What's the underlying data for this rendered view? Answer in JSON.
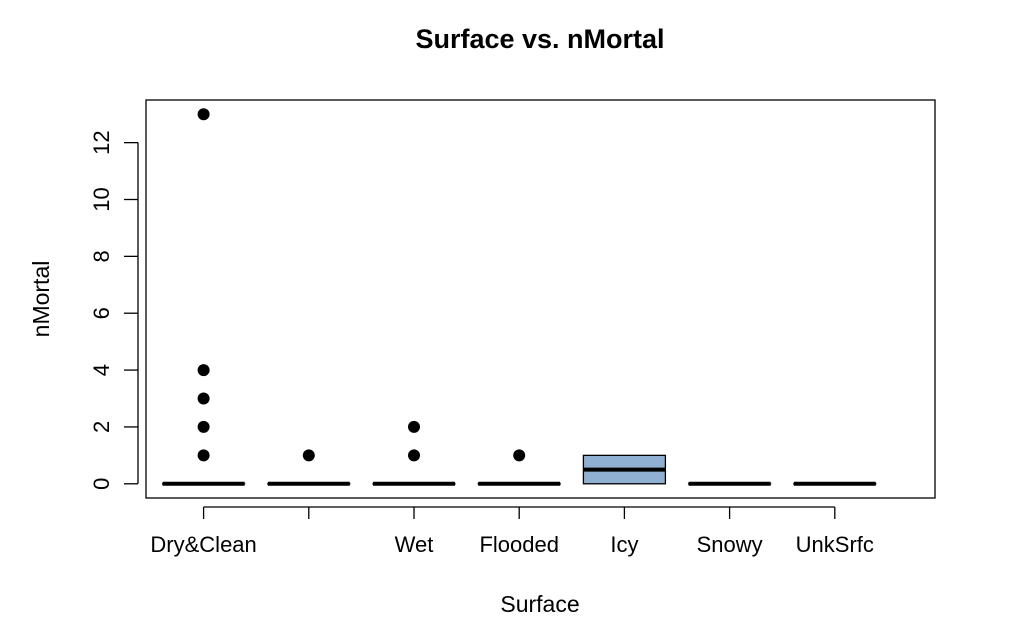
{
  "chart_data": {
    "type": "boxplot",
    "title": "Surface  vs. nMortal",
    "xlabel": "Surface",
    "ylabel": "nMortal",
    "ylim": [
      -0.5,
      13.5
    ],
    "yticks": [
      0,
      2,
      4,
      6,
      8,
      10,
      12
    ],
    "grid": false,
    "legend": "none",
    "box_color": "#8fb0d1",
    "categories": [
      "Dry&Clean",
      "",
      "Wet",
      "Flooded",
      "Icy",
      "Snowy",
      "UnkSrfc"
    ],
    "boxes": [
      {
        "category": "Dry&Clean",
        "q1": 0,
        "median": 0,
        "q3": 0,
        "whisker_low": 0,
        "whisker_high": 0,
        "outliers": [
          1,
          2,
          3,
          4,
          13
        ]
      },
      {
        "category": "",
        "q1": 0,
        "median": 0,
        "q3": 0,
        "whisker_low": 0,
        "whisker_high": 0,
        "outliers": [
          1
        ]
      },
      {
        "category": "Wet",
        "q1": 0,
        "median": 0,
        "q3": 0,
        "whisker_low": 0,
        "whisker_high": 0,
        "outliers": [
          1,
          2
        ]
      },
      {
        "category": "Flooded",
        "q1": 0,
        "median": 0,
        "q3": 0,
        "whisker_low": 0,
        "whisker_high": 0,
        "outliers": [
          1
        ]
      },
      {
        "category": "Icy",
        "q1": 0,
        "median": 0.5,
        "q3": 1,
        "whisker_low": 0,
        "whisker_high": 1,
        "outliers": []
      },
      {
        "category": "Snowy",
        "q1": 0,
        "median": 0,
        "q3": 0,
        "whisker_low": 0,
        "whisker_high": 0,
        "outliers": []
      },
      {
        "category": "UnkSrfc",
        "q1": 0,
        "median": 0,
        "q3": 0,
        "whisker_low": 0,
        "whisker_high": 0,
        "outliers": []
      }
    ]
  }
}
